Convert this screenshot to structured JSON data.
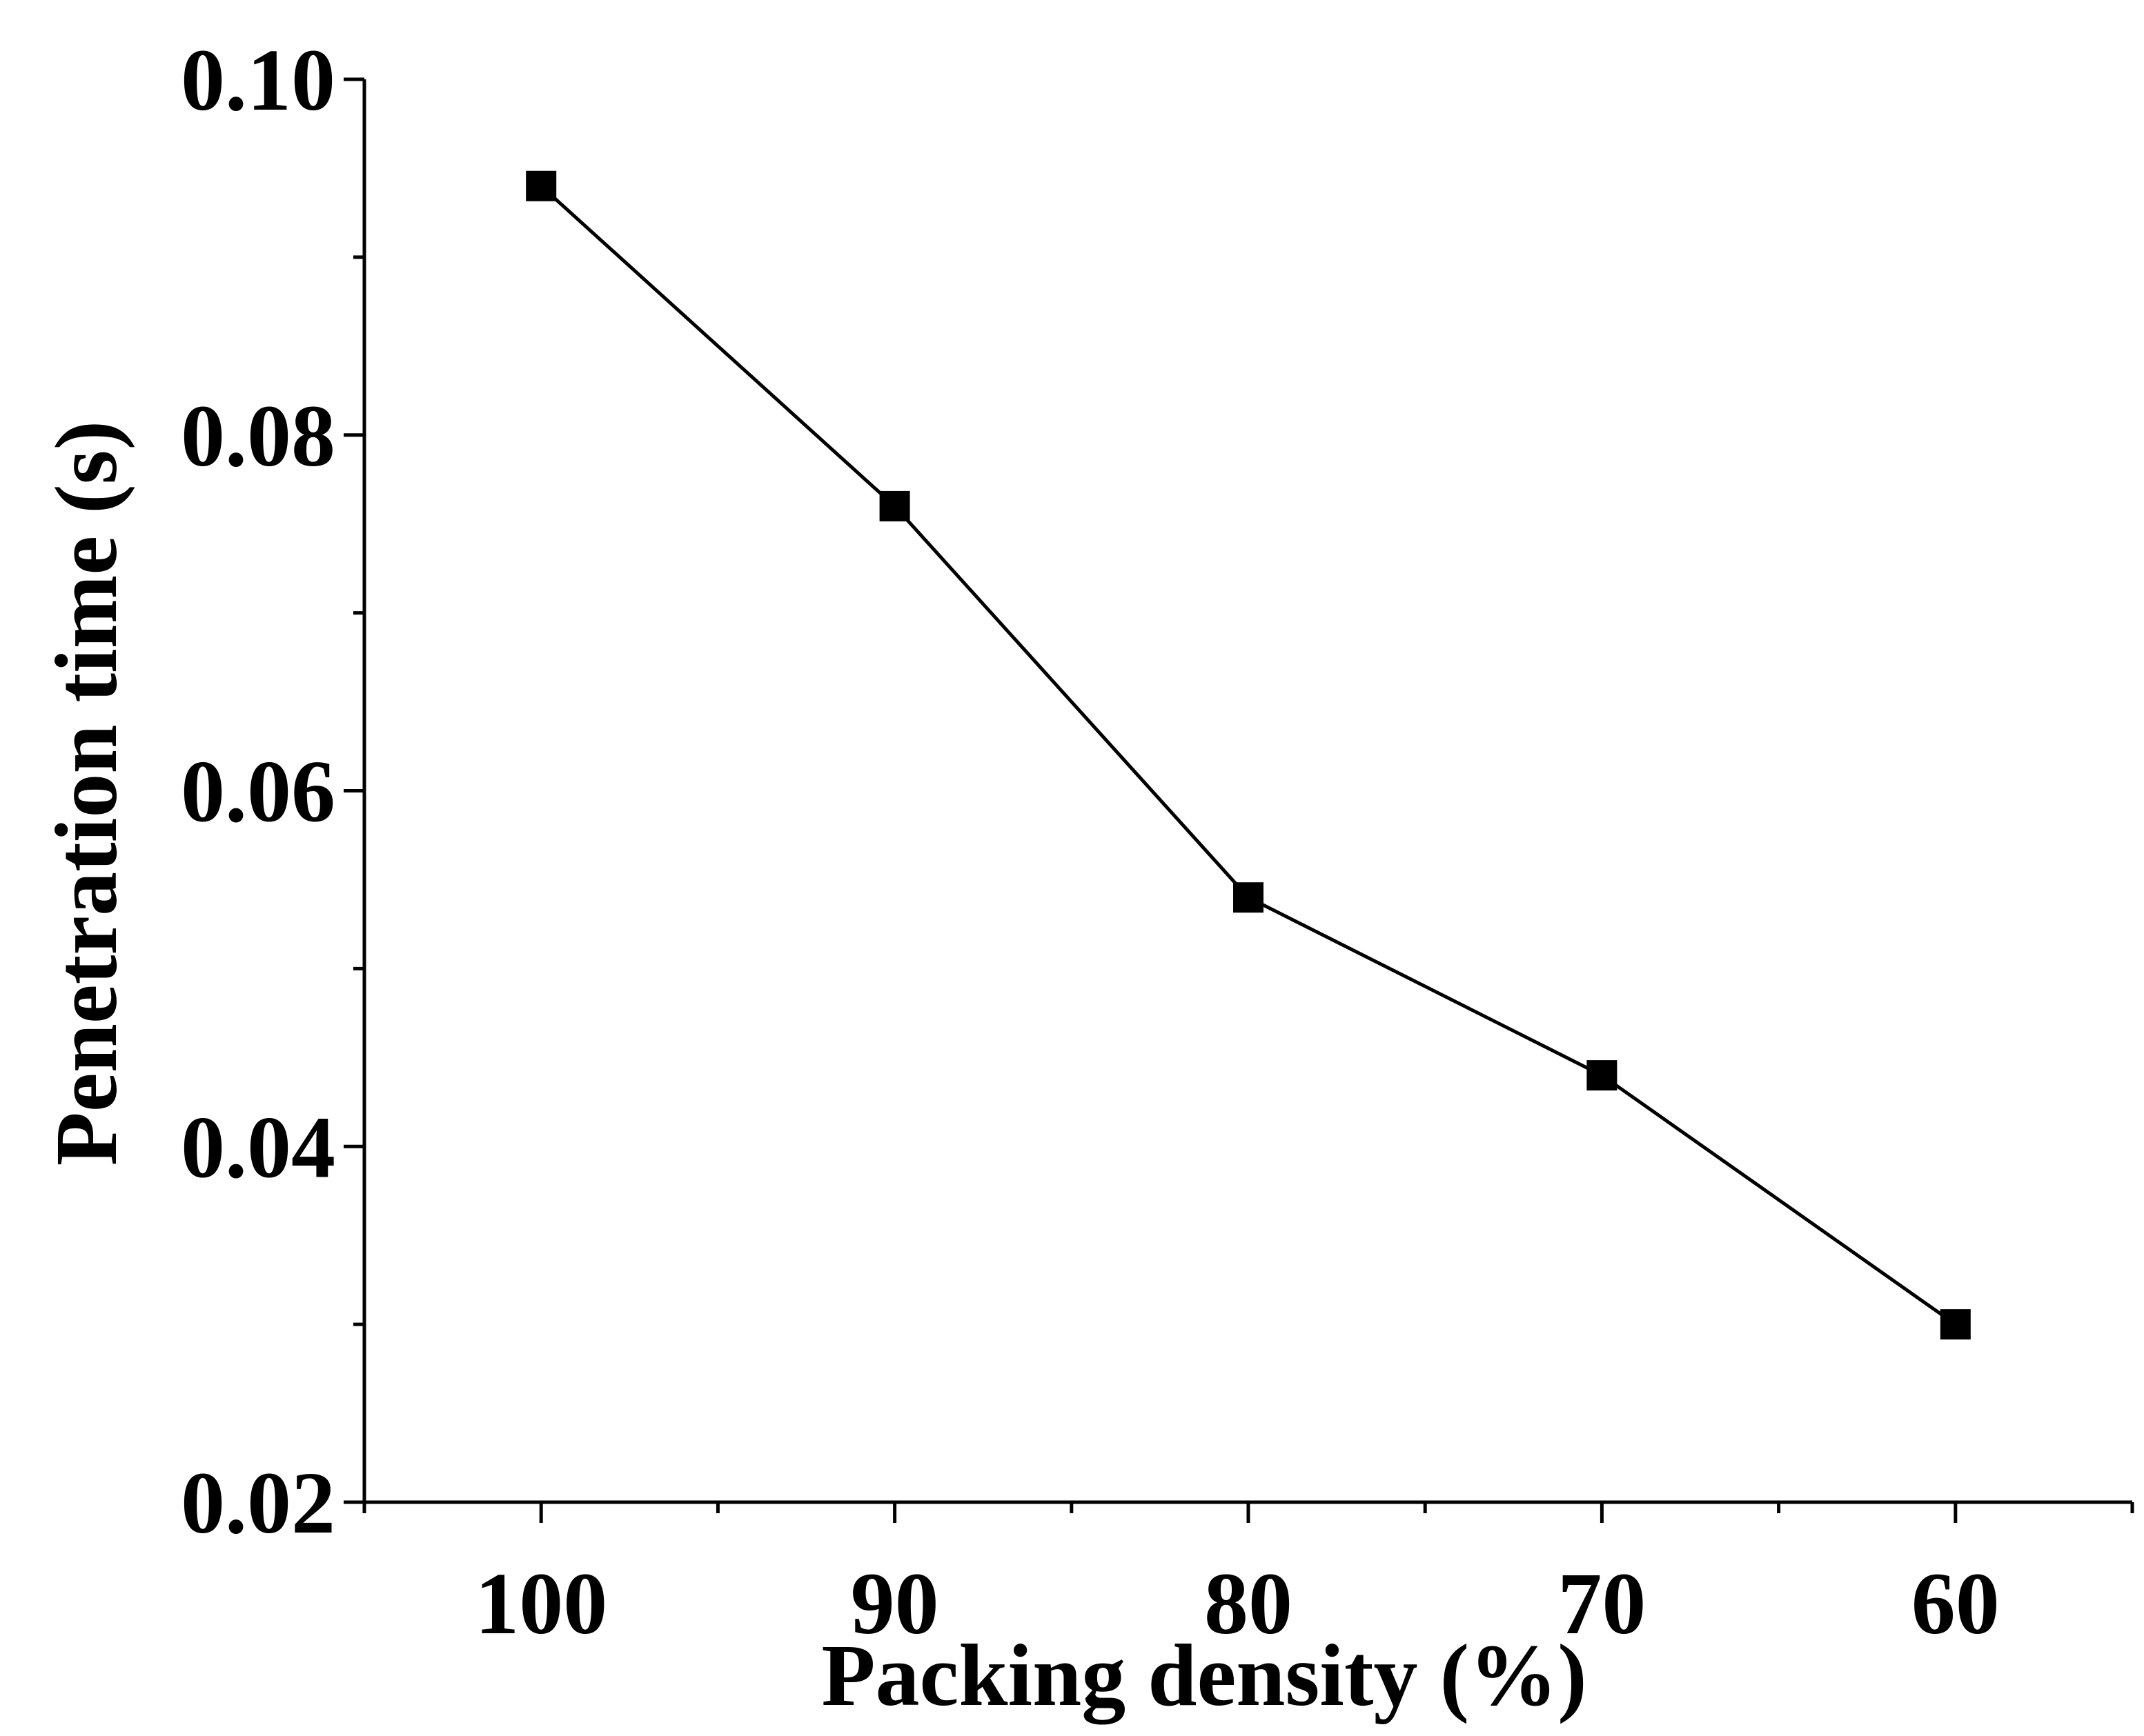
{
  "chart_data": {
    "type": "line",
    "title": "",
    "xlabel": "Packing density (%)",
    "ylabel": "Penetration time (s)",
    "x": [
      100,
      90,
      80,
      70,
      60
    ],
    "x_tick_labels": [
      "100",
      "90",
      "80",
      "70",
      "60"
    ],
    "xlim": [
      105,
      55
    ],
    "x_reversed": true,
    "ylim": [
      0.02,
      0.1
    ],
    "y_ticks": [
      0.02,
      0.04,
      0.06,
      0.08,
      0.1
    ],
    "y_tick_labels": [
      "0.02",
      "0.04",
      "0.06",
      "0.08",
      "0.10"
    ],
    "grid": false,
    "series": [
      {
        "name": "Penetration time",
        "values": [
          0.094,
          0.076,
          0.054,
          0.044,
          0.03
        ],
        "marker": "square",
        "color": "#000000"
      }
    ]
  }
}
